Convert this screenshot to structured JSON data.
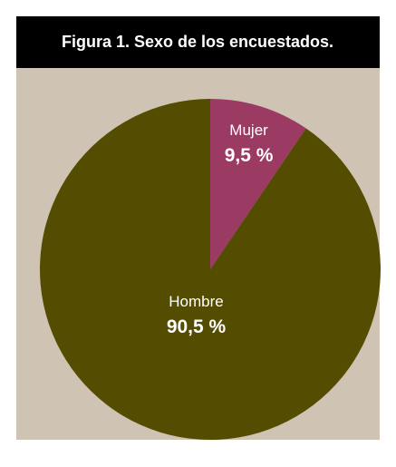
{
  "chart_data": {
    "type": "pie",
    "title": "Figura 1. Sexo de los encuestados.",
    "categories": [
      "Mujer",
      "Hombre"
    ],
    "values": [
      9.5,
      90.5
    ],
    "value_labels": [
      "9,5 %",
      "90,5 %"
    ],
    "colors": [
      "#9b3a63",
      "#544c00"
    ]
  }
}
